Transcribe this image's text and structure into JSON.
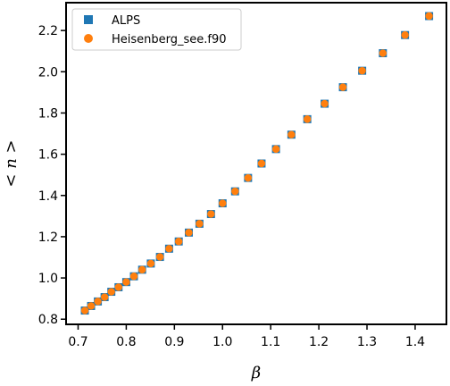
{
  "chart_data": {
    "type": "scatter",
    "xlabel": "β",
    "ylabel": "< n >",
    "xlim": [
      0.675,
      1.465
    ],
    "ylim": [
      0.775,
      2.335
    ],
    "x_ticks": [
      "0.7",
      "0.8",
      "0.9",
      "1.0",
      "1.1",
      "1.2",
      "1.3",
      "1.4"
    ],
    "y_ticks": [
      "0.8",
      "1.0",
      "1.2",
      "1.4",
      "1.6",
      "1.8",
      "2.0",
      "2.2"
    ],
    "legend_position": "top-left",
    "grid": false,
    "series": [
      {
        "name": "ALPS",
        "marker": "square",
        "color": "#1f77b4",
        "x": [
          0.714,
          0.727,
          0.741,
          0.755,
          0.769,
          0.784,
          0.8,
          0.816,
          0.833,
          0.851,
          0.87,
          0.889,
          0.909,
          0.93,
          0.952,
          0.976,
          1.0,
          1.026,
          1.053,
          1.081,
          1.111,
          1.143,
          1.176,
          1.212,
          1.25,
          1.29,
          1.333,
          1.379,
          1.429
        ],
        "y": [
          0.842,
          0.864,
          0.886,
          0.907,
          0.933,
          0.955,
          0.98,
          1.008,
          1.04,
          1.07,
          1.102,
          1.142,
          1.177,
          1.22,
          1.263,
          1.31,
          1.362,
          1.42,
          1.485,
          1.555,
          1.625,
          1.695,
          1.77,
          1.845,
          1.925,
          2.005,
          2.09,
          2.178,
          2.27
        ]
      },
      {
        "name": "Heisenberg_see.f90",
        "marker": "circle",
        "color": "#ff7f0e",
        "x": [
          0.714,
          0.727,
          0.741,
          0.755,
          0.769,
          0.784,
          0.8,
          0.816,
          0.833,
          0.851,
          0.87,
          0.889,
          0.909,
          0.93,
          0.952,
          0.976,
          1.0,
          1.026,
          1.053,
          1.081,
          1.111,
          1.143,
          1.176,
          1.212,
          1.25,
          1.29,
          1.333,
          1.379,
          1.429
        ],
        "y": [
          0.842,
          0.864,
          0.886,
          0.907,
          0.933,
          0.955,
          0.98,
          1.008,
          1.04,
          1.07,
          1.102,
          1.142,
          1.177,
          1.22,
          1.263,
          1.31,
          1.362,
          1.42,
          1.485,
          1.555,
          1.625,
          1.695,
          1.77,
          1.845,
          1.925,
          2.005,
          2.09,
          2.178,
          2.27
        ]
      }
    ]
  }
}
